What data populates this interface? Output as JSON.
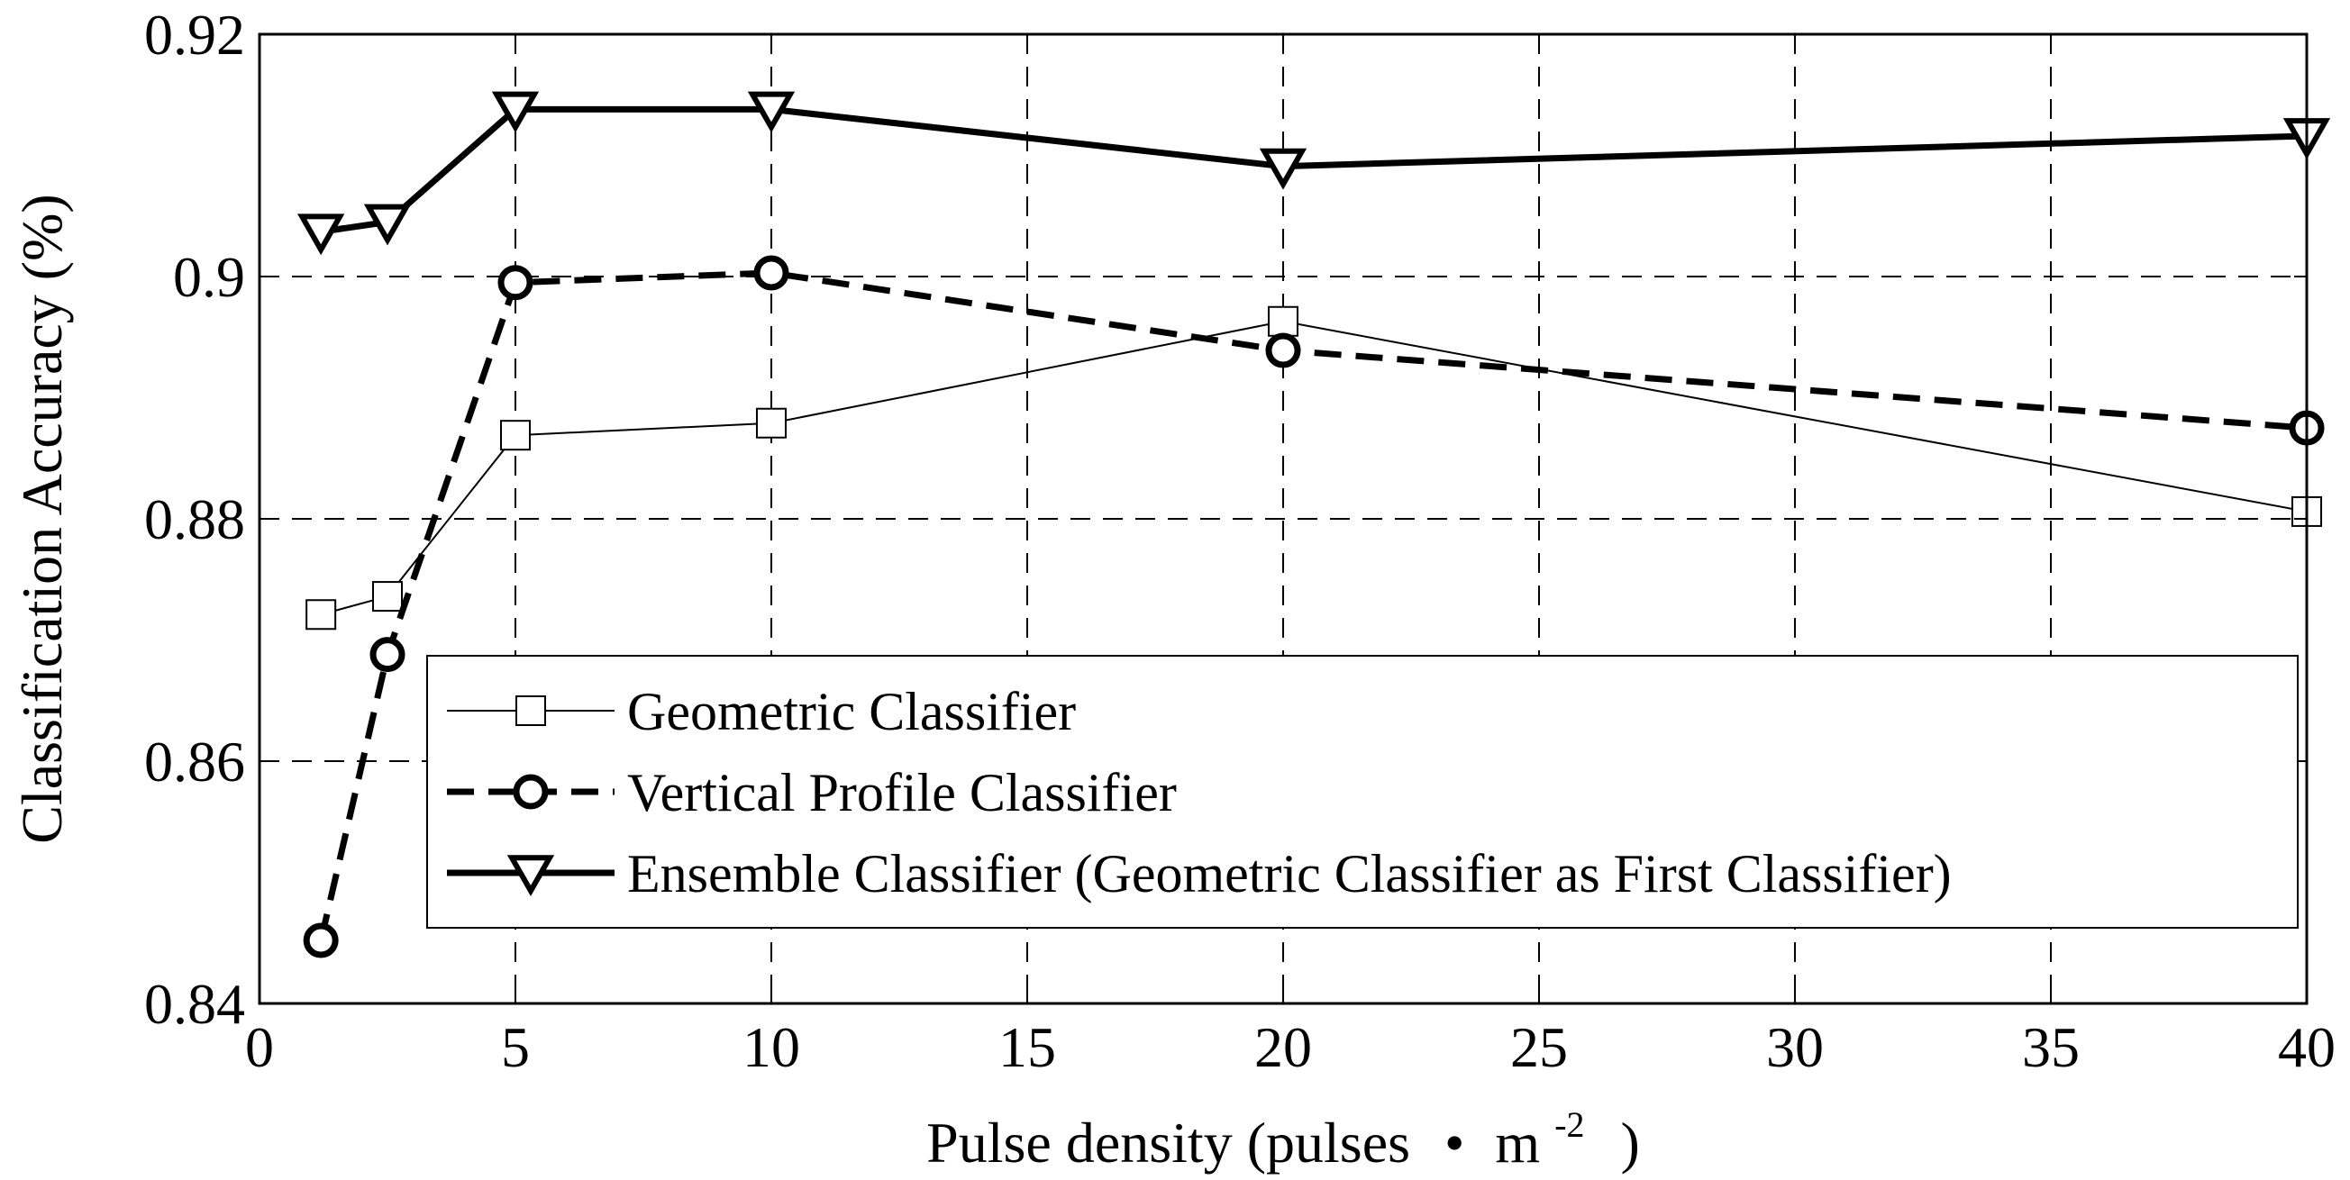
{
  "chart_data": {
    "type": "line",
    "title": "",
    "xlabel": "Pulse density (pulses",
    "xlabel_unit": "m",
    "xlabel_exp": "-2",
    "xlabel_close": ")",
    "ylabel": "Classification Accuracy (%)",
    "xlim": [
      0,
      40
    ],
    "ylim": [
      0.84,
      0.92
    ],
    "x_ticks": [
      0,
      5,
      10,
      15,
      20,
      25,
      30,
      35,
      40
    ],
    "x_tick_labels": [
      "0",
      "5",
      "10",
      "15",
      "20",
      "25",
      "30",
      "35",
      "40"
    ],
    "y_ticks": [
      0.84,
      0.86,
      0.88,
      0.9,
      0.92
    ],
    "y_tick_labels": [
      "0.84",
      "0.86",
      "0.88",
      "0.9",
      "0.92"
    ],
    "grid": true,
    "legend_position": "bottom-right",
    "x": [
      1.2,
      2.5,
      5,
      10,
      20,
      40
    ],
    "series": [
      {
        "name": "Geometric Classifier",
        "marker": "square",
        "line_style": "solid-thin",
        "values": [
          0.8721,
          0.8736,
          0.8869,
          0.8879,
          0.8963,
          0.8806
        ]
      },
      {
        "name": "Vertical Profile Classifier",
        "marker": "circle",
        "line_style": "dashed-thick",
        "values": [
          0.8452,
          0.8688,
          0.8995,
          0.9003,
          0.8939,
          0.8875
        ]
      },
      {
        "name": "Ensemble Classifier (Geometric Classifier as First Classifier)",
        "marker": "triangle-down",
        "line_style": "solid-thick",
        "values": [
          0.9037,
          0.9045,
          0.9138,
          0.9138,
          0.9091,
          0.9116
        ]
      }
    ]
  }
}
